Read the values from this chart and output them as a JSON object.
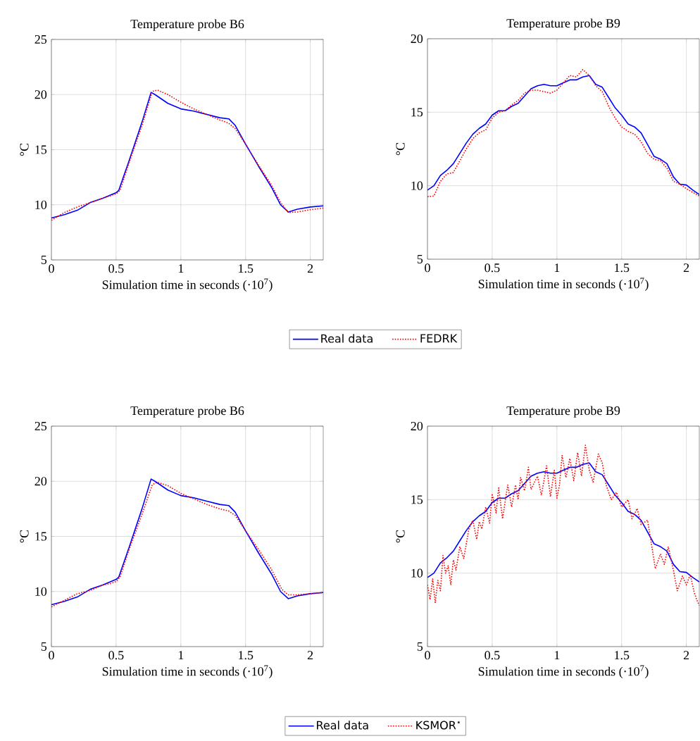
{
  "chart_data": [
    {
      "type": "line",
      "title": "Temperature probe B6",
      "xlabel": "Simulation time in seconds (·10$^{7}$)",
      "ylabel": "°C",
      "xlim": [
        0,
        2.1
      ],
      "ylim": [
        5,
        25
      ],
      "xticks": [
        0,
        0.5,
        1,
        1.5,
        2
      ],
      "yticks": [
        5,
        10,
        15,
        20,
        25
      ],
      "grid": true,
      "legend": "bottom",
      "marker": "none",
      "series": [
        {
          "name": "Real data",
          "color": "#0000ff",
          "line_style": "solid",
          "x": [
            0,
            0.1,
            0.2,
            0.3,
            0.4,
            0.5,
            0.52,
            0.6,
            0.7,
            0.77,
            0.8,
            0.9,
            1.0,
            1.1,
            1.2,
            1.3,
            1.37,
            1.42,
            1.5,
            1.6,
            1.7,
            1.77,
            1.83,
            1.9,
            2.0,
            2.1
          ],
          "values": [
            8.8,
            9.1,
            9.5,
            10.2,
            10.6,
            11.1,
            11.3,
            14.0,
            17.5,
            20.2,
            20.0,
            19.2,
            18.7,
            18.5,
            18.2,
            17.9,
            17.8,
            17.2,
            15.5,
            13.5,
            11.6,
            10.0,
            9.35,
            9.6,
            9.8,
            9.9
          ]
        },
        {
          "name": "FEDRK",
          "color": "#ff0000",
          "line_style": "dotted",
          "x": [
            0,
            0.1,
            0.2,
            0.3,
            0.4,
            0.5,
            0.53,
            0.6,
            0.7,
            0.78,
            0.82,
            0.9,
            1.0,
            1.1,
            1.2,
            1.3,
            1.37,
            1.42,
            1.5,
            1.6,
            1.7,
            1.77,
            1.83,
            1.9,
            2.0,
            2.1
          ],
          "values": [
            8.6,
            9.3,
            9.8,
            10.2,
            10.6,
            11.0,
            11.3,
            13.8,
            17.2,
            20.3,
            20.4,
            20.0,
            19.3,
            18.7,
            18.2,
            17.7,
            17.4,
            16.9,
            15.5,
            13.6,
            11.8,
            10.2,
            9.3,
            9.35,
            9.55,
            9.7
          ]
        }
      ]
    },
    {
      "type": "line",
      "title": "Temperature probe B9",
      "xlabel": "Simulation time in seconds (·10$^{7}$)",
      "ylabel": "°C",
      "xlim": [
        0,
        2.1
      ],
      "ylim": [
        5,
        20
      ],
      "xticks": [
        0,
        0.5,
        1,
        1.5,
        2
      ],
      "yticks": [
        5,
        10,
        15,
        20
      ],
      "grid": true,
      "marker": "none",
      "series": [
        {
          "color": "#0000ff",
          "line_style": "solid",
          "x": [
            0,
            0.05,
            0.1,
            0.15,
            0.2,
            0.25,
            0.3,
            0.35,
            0.4,
            0.45,
            0.5,
            0.55,
            0.6,
            0.65,
            0.7,
            0.75,
            0.8,
            0.85,
            0.9,
            0.95,
            1.0,
            1.05,
            1.1,
            1.15,
            1.2,
            1.25,
            1.3,
            1.35,
            1.4,
            1.45,
            1.5,
            1.55,
            1.6,
            1.65,
            1.7,
            1.75,
            1.8,
            1.85,
            1.9,
            1.95,
            2.0,
            2.05,
            2.1
          ],
          "values": [
            9.7,
            10.0,
            10.7,
            11.05,
            11.5,
            12.2,
            12.9,
            13.5,
            13.9,
            14.2,
            14.8,
            15.1,
            15.1,
            15.4,
            15.6,
            16.1,
            16.6,
            16.8,
            16.9,
            16.8,
            16.8,
            17.0,
            17.2,
            17.2,
            17.4,
            17.5,
            16.9,
            16.7,
            16.0,
            15.3,
            14.8,
            14.2,
            14.0,
            13.6,
            12.8,
            12.0,
            11.8,
            11.5,
            10.6,
            10.1,
            10.05,
            9.7,
            9.4
          ]
        },
        {
          "color": "#ff0000",
          "line_style": "dotted",
          "x": [
            0,
            0.05,
            0.1,
            0.15,
            0.2,
            0.25,
            0.3,
            0.35,
            0.4,
            0.45,
            0.5,
            0.55,
            0.6,
            0.65,
            0.7,
            0.75,
            0.8,
            0.85,
            0.9,
            0.95,
            1.0,
            1.05,
            1.1,
            1.15,
            1.2,
            1.25,
            1.3,
            1.35,
            1.4,
            1.45,
            1.5,
            1.55,
            1.6,
            1.65,
            1.7,
            1.75,
            1.8,
            1.85,
            1.9,
            1.95,
            2.0,
            2.1
          ],
          "values": [
            9.25,
            9.3,
            10.3,
            10.8,
            10.9,
            11.7,
            12.5,
            13.2,
            13.6,
            13.8,
            14.6,
            15.0,
            15.1,
            15.5,
            15.8,
            16.3,
            16.5,
            16.5,
            16.4,
            16.3,
            16.5,
            17.0,
            17.5,
            17.4,
            17.9,
            17.5,
            16.8,
            16.4,
            15.4,
            14.6,
            14.0,
            13.7,
            13.5,
            13.0,
            12.2,
            11.8,
            11.7,
            11.2,
            10.3,
            10.1,
            9.8,
            9.3
          ]
        }
      ]
    },
    {
      "type": "line",
      "title": "Temperature probe B6",
      "xlabel": "Simulation time in seconds (·10$^{7}$)",
      "ylabel": "°C",
      "xlim": [
        0,
        2.1
      ],
      "ylim": [
        5,
        25
      ],
      "xticks": [
        0,
        0.5,
        1,
        1.5,
        2
      ],
      "yticks": [
        5,
        10,
        15,
        20,
        25
      ],
      "grid": true,
      "legend": "bottom",
      "marker": "none",
      "series": [
        {
          "name": "Real data",
          "color": "#0000ff",
          "line_style": "solid",
          "x": [
            0,
            0.1,
            0.2,
            0.3,
            0.4,
            0.5,
            0.52,
            0.6,
            0.7,
            0.77,
            0.8,
            0.9,
            1.0,
            1.1,
            1.2,
            1.3,
            1.37,
            1.42,
            1.5,
            1.6,
            1.7,
            1.77,
            1.83,
            1.9,
            2.0,
            2.1
          ],
          "values": [
            8.8,
            9.1,
            9.5,
            10.2,
            10.6,
            11.1,
            11.3,
            14.0,
            17.5,
            20.2,
            20.0,
            19.2,
            18.7,
            18.5,
            18.2,
            17.9,
            17.8,
            17.2,
            15.5,
            13.5,
            11.6,
            10.0,
            9.35,
            9.6,
            9.8,
            9.9
          ]
        },
        {
          "name": "KSMOR$^{⋆}$",
          "color": "#ff0000",
          "line_style": "dotted",
          "x": [
            0,
            0.1,
            0.2,
            0.3,
            0.4,
            0.45,
            0.5,
            0.53,
            0.6,
            0.7,
            0.78,
            0.82,
            0.9,
            1.0,
            1.1,
            1.2,
            1.3,
            1.37,
            1.42,
            1.5,
            1.6,
            1.7,
            1.78,
            1.83,
            1.9,
            2.0,
            2.1
          ],
          "values": [
            8.6,
            9.2,
            9.8,
            10.1,
            10.6,
            10.7,
            10.9,
            11.3,
            13.8,
            17.0,
            19.7,
            19.9,
            19.6,
            18.9,
            18.4,
            17.9,
            17.5,
            17.3,
            16.9,
            15.5,
            13.8,
            12.0,
            10.2,
            9.7,
            9.7,
            9.8,
            9.9
          ]
        }
      ]
    },
    {
      "type": "line",
      "title": "Temperature probe B9",
      "xlabel": "Simulation time in seconds (·10$^{7}$)",
      "ylabel": "°C",
      "xlim": [
        0,
        2.1
      ],
      "ylim": [
        5,
        20
      ],
      "xticks": [
        0,
        0.5,
        1,
        1.5,
        2
      ],
      "yticks": [
        5,
        10,
        15,
        20
      ],
      "grid": true,
      "marker": "none",
      "series": [
        {
          "color": "#0000ff",
          "line_style": "solid",
          "x": [
            0,
            0.05,
            0.1,
            0.15,
            0.2,
            0.25,
            0.3,
            0.35,
            0.4,
            0.45,
            0.5,
            0.55,
            0.6,
            0.65,
            0.7,
            0.75,
            0.8,
            0.85,
            0.9,
            0.95,
            1.0,
            1.05,
            1.1,
            1.15,
            1.2,
            1.25,
            1.3,
            1.35,
            1.4,
            1.45,
            1.5,
            1.55,
            1.6,
            1.65,
            1.7,
            1.75,
            1.8,
            1.85,
            1.9,
            1.95,
            2.0,
            2.05,
            2.1
          ],
          "values": [
            9.7,
            10.0,
            10.7,
            11.05,
            11.5,
            12.2,
            12.9,
            13.5,
            13.9,
            14.2,
            14.8,
            15.1,
            15.1,
            15.4,
            15.6,
            16.1,
            16.6,
            16.8,
            16.9,
            16.8,
            16.8,
            17.0,
            17.2,
            17.2,
            17.4,
            17.5,
            16.9,
            16.7,
            16.0,
            15.3,
            14.8,
            14.2,
            14.0,
            13.6,
            12.8,
            12.0,
            11.8,
            11.5,
            10.6,
            10.1,
            10.05,
            9.7,
            9.4
          ]
        },
        {
          "color": "#ff0000",
          "line_style": "dotted",
          "x": [
            0,
            0.02,
            0.04,
            0.06,
            0.08,
            0.1,
            0.12,
            0.14,
            0.16,
            0.18,
            0.2,
            0.22,
            0.25,
            0.28,
            0.32,
            0.35,
            0.38,
            0.4,
            0.42,
            0.45,
            0.48,
            0.5,
            0.53,
            0.55,
            0.58,
            0.62,
            0.65,
            0.68,
            0.7,
            0.72,
            0.75,
            0.78,
            0.8,
            0.85,
            0.88,
            0.92,
            0.95,
            0.98,
            1.0,
            1.02,
            1.04,
            1.07,
            1.1,
            1.13,
            1.16,
            1.19,
            1.22,
            1.25,
            1.28,
            1.32,
            1.35,
            1.38,
            1.42,
            1.46,
            1.5,
            1.55,
            1.58,
            1.62,
            1.65,
            1.7,
            1.73,
            1.76,
            1.8,
            1.83,
            1.86,
            1.9,
            1.93,
            1.97,
            2.0,
            2.03,
            2.06,
            2.08,
            2.1
          ],
          "values": [
            9.2,
            8.2,
            9.6,
            8.0,
            9.5,
            8.8,
            11.2,
            10.0,
            10.5,
            9.2,
            10.9,
            10.2,
            11.8,
            11.0,
            13.0,
            13.6,
            12.3,
            13.5,
            13.0,
            14.5,
            13.4,
            15.4,
            14.1,
            15.8,
            13.7,
            16.0,
            14.5,
            16.0,
            15.0,
            16.5,
            15.6,
            17.2,
            15.7,
            16.6,
            15.3,
            17.3,
            15.2,
            17.0,
            15.1,
            16.0,
            18.0,
            16.5,
            17.8,
            16.3,
            18.2,
            16.6,
            18.7,
            17.0,
            16.2,
            18.1,
            17.5,
            16.0,
            15.0,
            15.5,
            14.5,
            15.0,
            13.7,
            14.4,
            13.3,
            13.6,
            12.0,
            10.3,
            11.3,
            10.6,
            11.8,
            10.2,
            8.8,
            9.8,
            9.2,
            9.9,
            8.7,
            8.2,
            7.8
          ]
        }
      ]
    }
  ]
}
